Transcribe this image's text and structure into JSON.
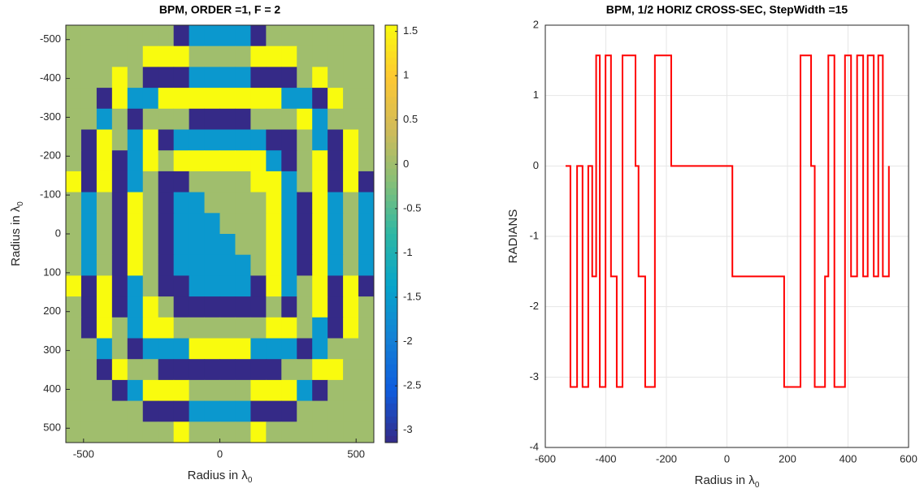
{
  "chart_data": [
    {
      "type": "heatmap",
      "title": "BPM, ORDER =1, F = 2",
      "x_label": "Radius in λ",
      "x_label_sub": "0",
      "y_label": "Radius in λ",
      "y_label_sub": "0",
      "xlim": [
        -565,
        565
      ],
      "ylim": [
        -537,
        537
      ],
      "y_reversed": true,
      "xticks": [
        -500,
        0,
        500
      ],
      "yticks": [
        -500,
        -400,
        -300,
        -200,
        -100,
        0,
        100,
        200,
        300,
        400,
        500
      ],
      "colormap": "parula",
      "clim": [
        -3.14,
        1.57
      ],
      "cticks": [
        1.5,
        1,
        0.5,
        0,
        -0.5,
        -1,
        -1.5,
        -2,
        -2.5,
        -3
      ],
      "z": [
        [
          0,
          0,
          0,
          0,
          0,
          0,
          0,
          -3.14,
          -1.57,
          -1.57,
          -1.57,
          -1.57,
          -3.14,
          0,
          0,
          0,
          0,
          0,
          0,
          0
        ],
        [
          0,
          0,
          0,
          0,
          0,
          1.57,
          1.57,
          1.57,
          0,
          0,
          0,
          0,
          1.57,
          1.57,
          1.57,
          0,
          0,
          0,
          0,
          0
        ],
        [
          0,
          0,
          0,
          1.57,
          0,
          -3.14,
          -3.14,
          -3.14,
          -1.57,
          -1.57,
          -1.57,
          -1.57,
          -3.14,
          -3.14,
          -3.14,
          0,
          1.57,
          0,
          0,
          0
        ],
        [
          0,
          0,
          -3.14,
          1.57,
          -1.57,
          -1.57,
          1.57,
          1.57,
          1.57,
          1.57,
          1.57,
          1.57,
          1.57,
          1.57,
          -1.57,
          -1.57,
          -3.14,
          1.57,
          0,
          0
        ],
        [
          0,
          0,
          -1.57,
          0,
          -3.14,
          0,
          0,
          0,
          -3.14,
          -3.14,
          -3.14,
          -3.14,
          0,
          0,
          0,
          1.57,
          -1.57,
          0,
          0,
          0
        ],
        [
          0,
          -3.14,
          1.57,
          0,
          -1.57,
          1.57,
          -3.14,
          -1.57,
          -1.57,
          -1.57,
          -1.57,
          -1.57,
          -1.57,
          -3.14,
          -3.14,
          0,
          -1.57,
          -3.14,
          1.57,
          0
        ],
        [
          0,
          -3.14,
          1.57,
          -3.14,
          -1.57,
          1.57,
          0,
          1.57,
          1.57,
          1.57,
          1.57,
          1.57,
          1.57,
          -1.57,
          -3.14,
          0,
          1.57,
          -3.14,
          1.57,
          0
        ],
        [
          1.57,
          -3.14,
          1.57,
          -3.14,
          -1.57,
          0,
          -3.14,
          -3.14,
          0,
          0,
          0,
          0,
          1.57,
          1.57,
          -1.57,
          0,
          1.57,
          -3.14,
          1.57,
          -3.14
        ],
        [
          0,
          -1.57,
          0,
          -3.14,
          1.57,
          0,
          -3.14,
          -1.57,
          -1.57,
          0,
          0,
          0,
          0,
          1.57,
          -1.57,
          -3.14,
          1.57,
          -1.57,
          0,
          -1.57
        ],
        [
          0,
          -1.57,
          0,
          -3.14,
          1.57,
          0,
          -3.14,
          -1.57,
          -1.57,
          -1.57,
          0,
          0,
          0,
          1.57,
          -1.57,
          -3.14,
          1.57,
          -1.57,
          0,
          -1.57
        ],
        [
          0,
          -1.57,
          0,
          -3.14,
          1.57,
          0,
          -3.14,
          -1.57,
          -1.57,
          -1.57,
          -1.57,
          0,
          0,
          1.57,
          -1.57,
          -3.14,
          1.57,
          -1.57,
          0,
          -1.57
        ],
        [
          0,
          -1.57,
          0,
          -3.14,
          1.57,
          0,
          -3.14,
          -1.57,
          -1.57,
          -1.57,
          -1.57,
          -1.57,
          0,
          1.57,
          -1.57,
          -3.14,
          1.57,
          -1.57,
          0,
          -1.57
        ],
        [
          1.57,
          -3.14,
          1.57,
          -3.14,
          -1.57,
          0,
          -3.14,
          -3.14,
          -1.57,
          -1.57,
          -1.57,
          -1.57,
          -3.14,
          1.57,
          -1.57,
          0,
          1.57,
          -3.14,
          1.57,
          -3.14
        ],
        [
          0,
          -3.14,
          1.57,
          -3.14,
          -1.57,
          1.57,
          0,
          -3.14,
          -3.14,
          -3.14,
          -3.14,
          -3.14,
          -3.14,
          0,
          -3.14,
          0,
          1.57,
          -3.14,
          1.57,
          0
        ],
        [
          0,
          -3.14,
          1.57,
          0,
          -1.57,
          1.57,
          1.57,
          0,
          0,
          0,
          0,
          0,
          0,
          1.57,
          1.57,
          0,
          -1.57,
          -3.14,
          1.57,
          0
        ],
        [
          0,
          0,
          -1.57,
          0,
          -3.14,
          -1.57,
          -1.57,
          -1.57,
          1.57,
          1.57,
          1.57,
          1.57,
          -1.57,
          -1.57,
          -1.57,
          -3.14,
          -1.57,
          0,
          0,
          0
        ],
        [
          0,
          0,
          -3.14,
          1.57,
          0,
          0,
          -3.14,
          -3.14,
          -3.14,
          -3.14,
          -3.14,
          -3.14,
          -3.14,
          -3.14,
          0,
          0,
          1.57,
          1.57,
          0,
          0
        ],
        [
          0,
          0,
          0,
          -3.14,
          -1.57,
          1.57,
          1.57,
          1.57,
          0,
          0,
          0,
          0,
          1.57,
          1.57,
          1.57,
          -1.57,
          -3.14,
          0,
          0,
          0
        ],
        [
          0,
          0,
          0,
          0,
          0,
          -3.14,
          -3.14,
          -3.14,
          -1.57,
          -1.57,
          -1.57,
          -1.57,
          -3.14,
          -3.14,
          -3.14,
          0,
          0,
          0,
          0,
          0
        ],
        [
          0,
          0,
          0,
          0,
          0,
          0,
          0,
          1.57,
          0,
          0,
          0,
          0,
          1.57,
          0,
          0,
          0,
          0,
          0,
          0,
          0
        ]
      ]
    },
    {
      "type": "line",
      "title": "BPM, 1/2 HORIZ CROSS-SEC, StepWidth =15",
      "x_label": "Radius in λ",
      "x_label_sub": "0",
      "y_label": "RADIANS",
      "xlim": [
        -600,
        600
      ],
      "ylim": [
        -4,
        2
      ],
      "xticks": [
        -600,
        -400,
        -200,
        0,
        200,
        400,
        600
      ],
      "yticks": [
        -4,
        -3,
        -2,
        -1,
        0,
        1,
        2
      ],
      "grid": true,
      "x": [
        -533,
        -517,
        -517,
        -495,
        -495,
        -477,
        -477,
        -458,
        -458,
        -445,
        -445,
        -432,
        -432,
        -420,
        -420,
        -401,
        -401,
        -383,
        -383,
        -364,
        -364,
        -345,
        -345,
        -302,
        -302,
        -292,
        -292,
        -270,
        -270,
        -238,
        -238,
        -184,
        -184,
        18,
        18,
        189,
        189,
        243,
        243,
        278,
        278,
        290,
        290,
        324,
        324,
        335,
        335,
        355,
        355,
        390,
        390,
        410,
        410,
        430,
        430,
        450,
        450,
        465,
        465,
        485,
        485,
        500,
        500,
        515,
        515,
        535,
        535
      ],
      "series": [
        {
          "color": "#ff0000",
          "values": [
            0,
            0,
            -3.14,
            -3.14,
            0,
            0,
            -3.14,
            -3.14,
            0,
            0,
            -1.57,
            -1.57,
            1.57,
            1.57,
            -3.14,
            -3.14,
            1.57,
            1.57,
            -1.57,
            -1.57,
            -3.14,
            -3.14,
            1.57,
            1.57,
            0,
            0,
            -1.57,
            -1.57,
            -3.14,
            -3.14,
            1.57,
            1.57,
            0,
            0,
            -1.57,
            -1.57,
            -3.14,
            -3.14,
            1.57,
            1.57,
            0,
            0,
            -3.14,
            -3.14,
            -1.57,
            -1.57,
            1.57,
            1.57,
            -3.14,
            -3.14,
            1.57,
            1.57,
            -1.57,
            -1.57,
            1.57,
            1.57,
            -1.57,
            -1.57,
            1.57,
            1.57,
            -1.57,
            -1.57,
            1.57,
            1.57,
            -1.57,
            -1.57,
            0
          ]
        }
      ]
    }
  ]
}
